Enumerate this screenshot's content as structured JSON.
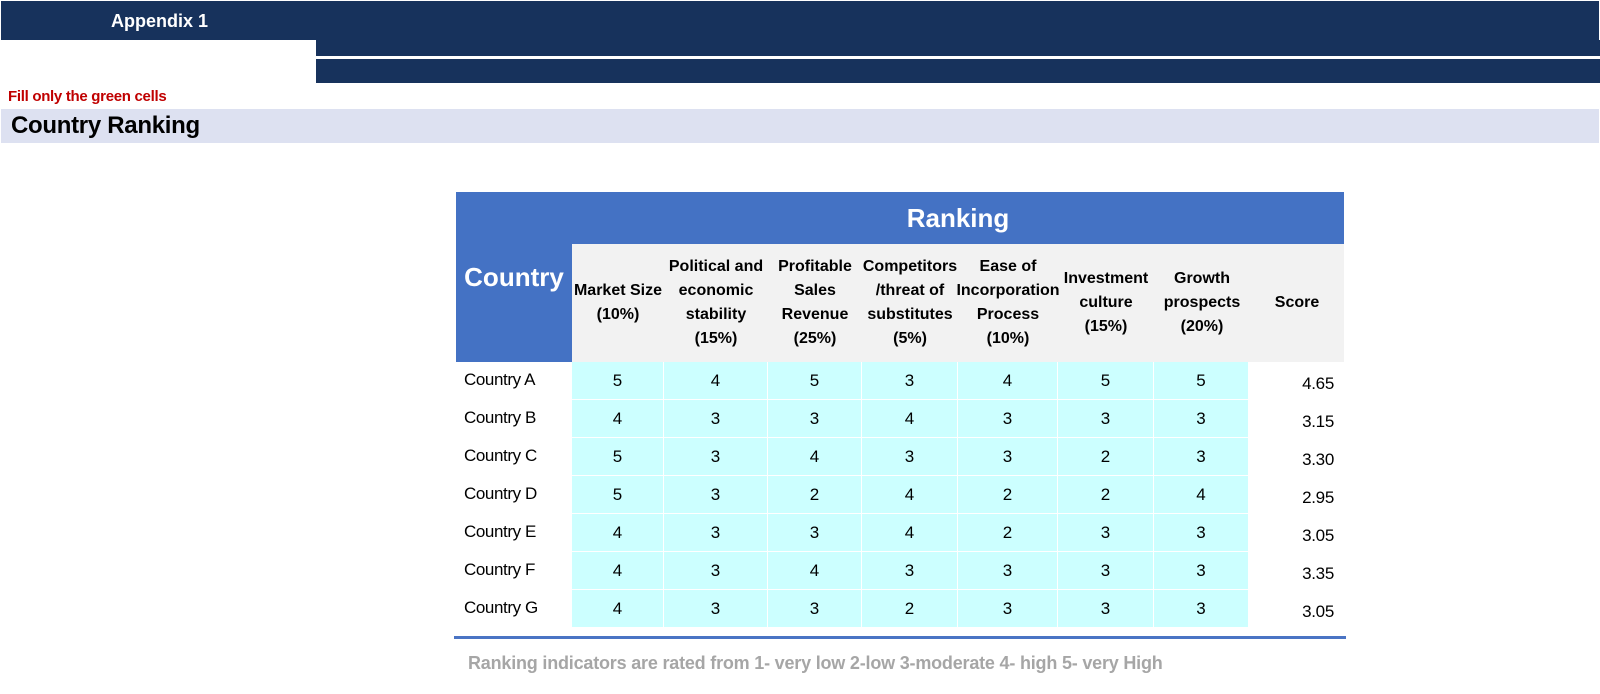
{
  "header": {
    "title": "Appendix 1"
  },
  "instruction": "Fill only the green cells",
  "section_title": "Country Ranking",
  "table": {
    "group_header": "Ranking",
    "country_header": "Country",
    "columns": [
      "Market Size (10%)",
      "Political and economic stability (15%)",
      "Profitable Sales Revenue (25%)",
      "Competitors /threat of substitutes (5%)",
      "Ease of Incorporation Process (10%)",
      "Investment culture (15%)",
      "Growth prospects (20%)",
      "Score"
    ],
    "rows": [
      {
        "country": "Country A",
        "values": [
          "5",
          "4",
          "5",
          "3",
          "4",
          "5",
          "5"
        ],
        "score": "4.65"
      },
      {
        "country": "Country B",
        "values": [
          "4",
          "3",
          "3",
          "4",
          "3",
          "3",
          "3"
        ],
        "score": "3.15"
      },
      {
        "country": "Country C",
        "values": [
          "5",
          "3",
          "4",
          "3",
          "3",
          "2",
          "3"
        ],
        "score": "3.30"
      },
      {
        "country": "Country D",
        "values": [
          "5",
          "3",
          "2",
          "4",
          "2",
          "2",
          "4"
        ],
        "score": "2.95"
      },
      {
        "country": "Country E",
        "values": [
          "4",
          "3",
          "3",
          "4",
          "2",
          "3",
          "3"
        ],
        "score": "3.05"
      },
      {
        "country": "Country F",
        "values": [
          "4",
          "3",
          "4",
          "3",
          "3",
          "3",
          "3"
        ],
        "score": "3.35"
      },
      {
        "country": "Country G",
        "values": [
          "4",
          "3",
          "3",
          "2",
          "3",
          "3",
          "3"
        ],
        "score": "3.05"
      }
    ]
  },
  "legend": "Ranking indicators are rated from 1- very low 2-low 3-moderate  4- high 5- very High",
  "colors": {
    "navy": "#17325c",
    "header_blue": "#4472c4",
    "input_cell": "#ccffff",
    "instruction_red": "#c00000",
    "section_bar": "#dde1f1"
  }
}
